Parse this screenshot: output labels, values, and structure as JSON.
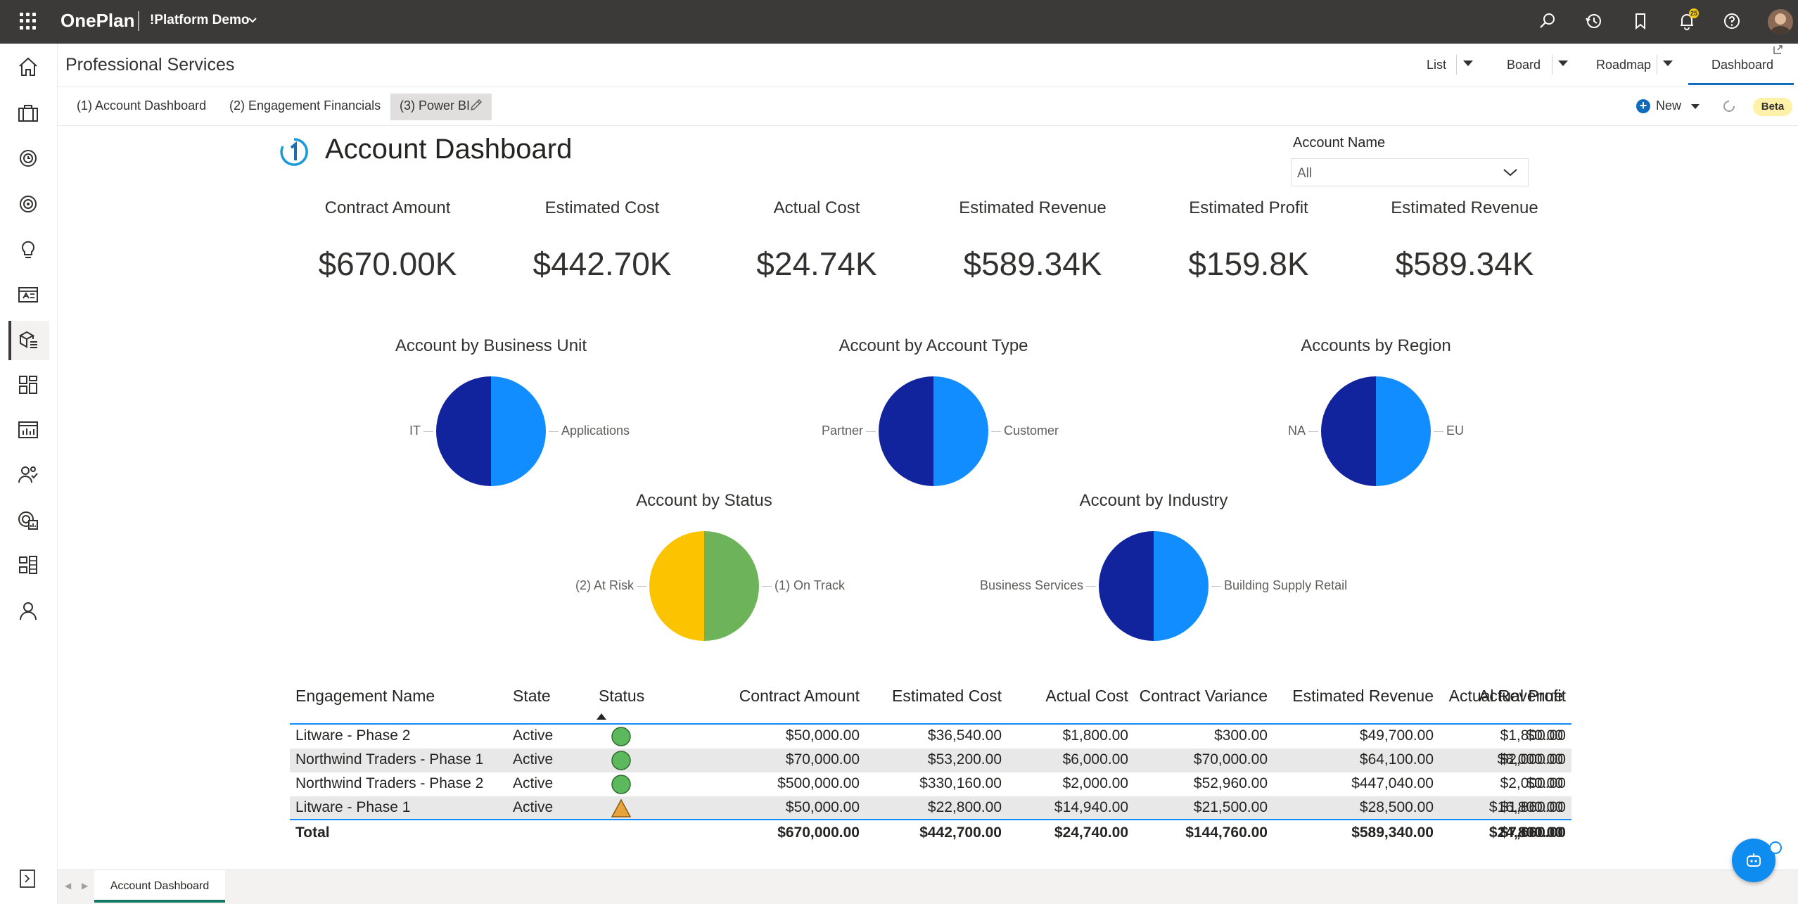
{
  "app": {
    "brand": "OnePlan",
    "workspace": "!Platform Demo",
    "notifications_count": "25"
  },
  "header": {
    "title": "Professional Services",
    "views": [
      {
        "label": "List"
      },
      {
        "label": "Board"
      },
      {
        "label": "Roadmap"
      },
      {
        "label": "Dashboard"
      }
    ]
  },
  "subtabs": {
    "items": [
      "(1) Account Dashboard",
      "(2) Engagement Financials",
      "(3) Power BI"
    ],
    "new_label": "New",
    "beta_label": "Beta"
  },
  "report": {
    "title": "Account Dashboard",
    "filter_label": "Account Name",
    "filter_value": "All",
    "kpis": [
      {
        "label": "Contract Amount",
        "value": "$670.00K"
      },
      {
        "label": "Estimated Cost",
        "value": "$442.70K"
      },
      {
        "label": "Actual Cost",
        "value": "$24.74K"
      },
      {
        "label": "Estimated Revenue",
        "value": "$589.34K"
      },
      {
        "label": "Estimated Profit",
        "value": "$159.8K"
      },
      {
        "label": "Estimated Revenue",
        "value": "$589.34K"
      }
    ]
  },
  "chart_data": [
    {
      "type": "pie",
      "title": "Account by Business Unit",
      "categories": [
        "IT",
        "Applications"
      ],
      "values": [
        50,
        50
      ],
      "colors": [
        "#12239e",
        "#118dff"
      ]
    },
    {
      "type": "pie",
      "title": "Account by Account Type",
      "categories": [
        "Partner",
        "Customer"
      ],
      "values": [
        50,
        50
      ],
      "colors": [
        "#12239e",
        "#118dff"
      ]
    },
    {
      "type": "pie",
      "title": "Accounts by Region",
      "categories": [
        "NA",
        "EU"
      ],
      "values": [
        50,
        50
      ],
      "colors": [
        "#12239e",
        "#118dff"
      ]
    },
    {
      "type": "pie",
      "title": "Account by Status",
      "categories": [
        "(2) At Risk",
        "(1) On Track"
      ],
      "values": [
        50,
        50
      ],
      "colors": [
        "#fcc400",
        "#6cb35a"
      ]
    },
    {
      "type": "pie",
      "title": "Account by Industry",
      "categories": [
        "Business Services",
        "Building Supply Retail"
      ],
      "values": [
        50,
        50
      ],
      "colors": [
        "#12239e",
        "#118dff"
      ]
    }
  ],
  "table": {
    "columns": [
      "Engagement Name",
      "State",
      "Status",
      "Contract Amount",
      "Estimated Cost",
      "Actual Cost",
      "Contract Variance",
      "Estimated Revenue",
      "Actual Revenue",
      "Actual Profit"
    ],
    "rows": [
      {
        "name": "Litware - Phase 2",
        "state": "Active",
        "status": "on-track",
        "c1": "$50,000.00",
        "c2": "$36,540.00",
        "c3": "$1,800.00",
        "c4": "$300.00",
        "c5": "$49,700.00",
        "c6": "$0.00",
        "c7": "$1,800.00"
      },
      {
        "name": "Northwind Traders - Phase 1",
        "state": "Active",
        "status": "on-track",
        "c1": "$70,000.00",
        "c2": "$53,200.00",
        "c3": "$6,000.00",
        "c4": "$70,000.00",
        "c5": "$64,100.00",
        "c6": "$8,000.00",
        "c7": "$2,000.00"
      },
      {
        "name": "Northwind Traders - Phase 2",
        "state": "Active",
        "status": "on-track",
        "c1": "$500,000.00",
        "c2": "$330,160.00",
        "c3": "$2,000.00",
        "c4": "$52,960.00",
        "c5": "$447,040.00",
        "c6": "$0.00",
        "c7": "$2,000.00"
      },
      {
        "name": "Litware - Phase 1",
        "state": "Active",
        "status": "at-risk",
        "c1": "$50,000.00",
        "c2": "$22,800.00",
        "c3": "$14,940.00",
        "c4": "$21,500.00",
        "c5": "$28,500.00",
        "c6": "$16,800.00",
        "c7": "$1,860.00"
      }
    ],
    "total": {
      "name": "Total",
      "c1": "$670,000.00",
      "c2": "$442,700.00",
      "c3": "$24,740.00",
      "c4": "$144,760.00",
      "c5": "$589,340.00",
      "c6": "$24,800.00",
      "c7": "$7,660.00"
    }
  },
  "footer": {
    "page_tab": "Account Dashboard"
  }
}
